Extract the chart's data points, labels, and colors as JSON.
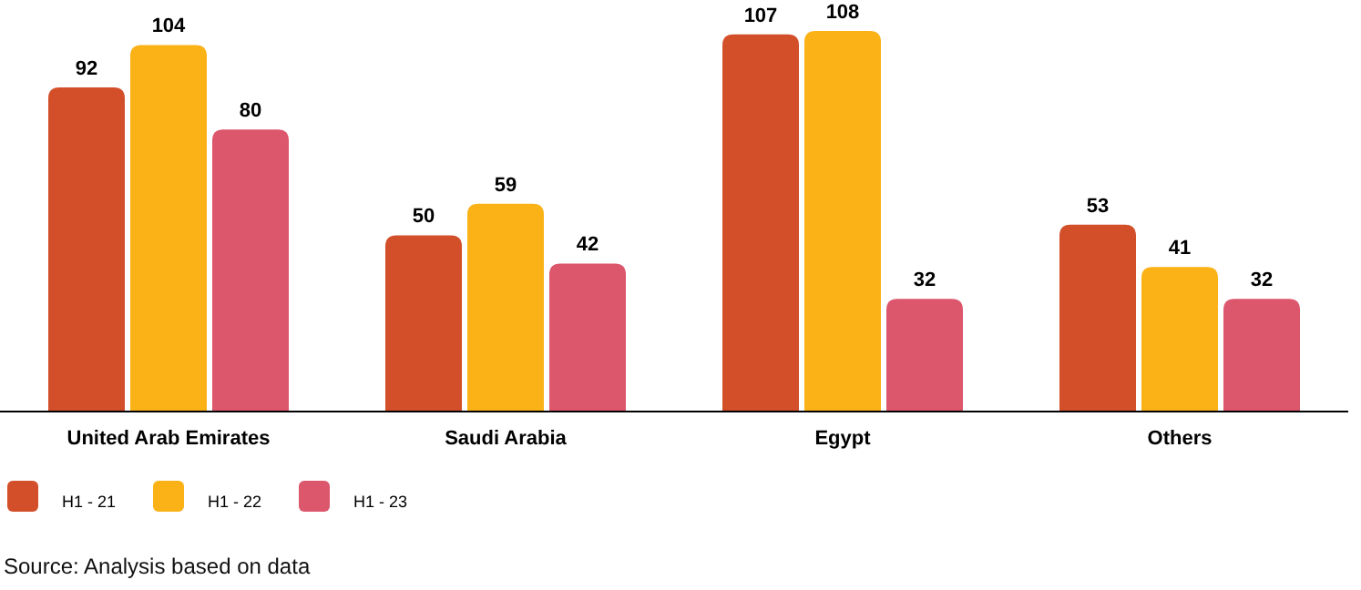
{
  "chart_data": {
    "type": "bar",
    "categories": [
      "United Arab Emirates",
      "Saudi Arabia",
      "Egypt",
      "Others"
    ],
    "series": [
      {
        "name": "H1 - 21",
        "color": "#d34f2a",
        "values": [
          92,
          50,
          107,
          53
        ]
      },
      {
        "name": "H1 - 22",
        "color": "#fbb216",
        "values": [
          104,
          59,
          108,
          41
        ]
      },
      {
        "name": "H1 - 23",
        "color": "#dc566c",
        "values": [
          80,
          42,
          32,
          32
        ]
      }
    ],
    "data_labels": true,
    "legend": "bottom left",
    "annotations": [
      "Source: Analysis based on data"
    ]
  }
}
